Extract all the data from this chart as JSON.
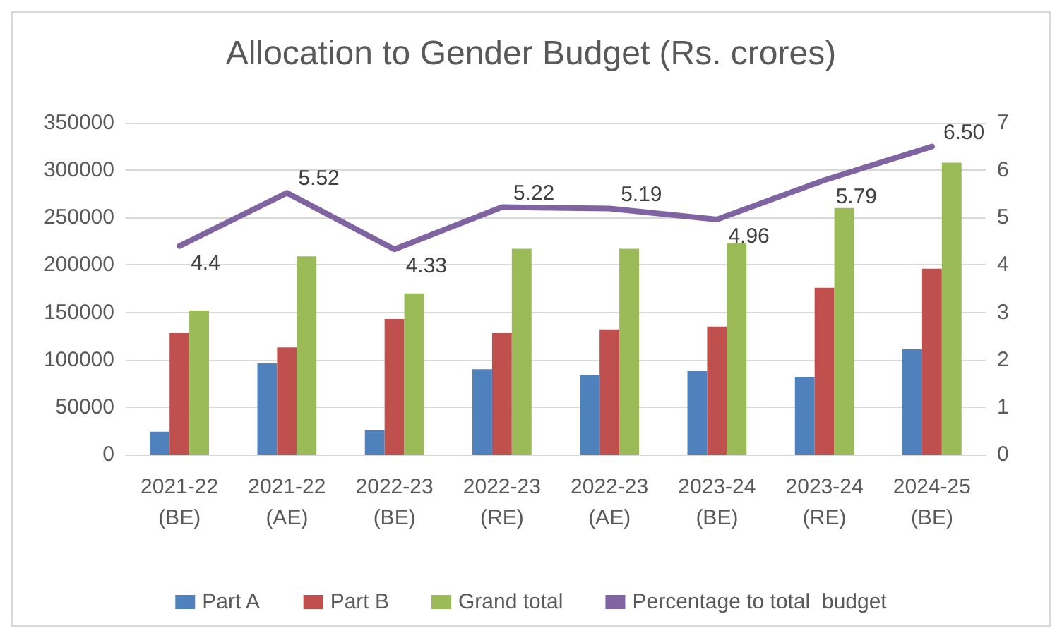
{
  "chart_data": {
    "type": "bar",
    "title": "Allocation to Gender Budget (Rs. crores)",
    "categories": [
      "2021-22\n(BE)",
      "2021-22\n(AE)",
      "2022-23\n(BE)",
      "2022-23\n(RE)",
      "2022-23\n(AE)",
      "2023-24\n(BE)",
      "2023-24\n(RE)",
      "2024-25\n(BE)"
    ],
    "series": [
      {
        "name": "Part A",
        "color": "#4f81bd",
        "values": [
          24000,
          96000,
          26000,
          90000,
          84000,
          88000,
          82000,
          111000
        ]
      },
      {
        "name": "Part B",
        "color": "#c0504d",
        "values": [
          128000,
          113000,
          143000,
          128000,
          132000,
          135000,
          176000,
          196000
        ]
      },
      {
        "name": "Grand total",
        "color": "#9bbb59",
        "values": [
          152000,
          209000,
          170000,
          217000,
          217000,
          223000,
          260000,
          308000
        ]
      },
      {
        "name": "Percentage to total  budget",
        "type": "line",
        "axis": "y2",
        "color": "#8064a2",
        "values": [
          4.4,
          5.52,
          4.33,
          5.22,
          5.19,
          4.96,
          5.79,
          6.5
        ],
        "value_labels": [
          "4.4",
          "5.52",
          "4.33",
          "5.22",
          "5.19",
          "4.96",
          "5.79",
          "6.50"
        ]
      }
    ],
    "ylim": [
      0,
      350000
    ],
    "yticks": [
      0,
      50000,
      100000,
      150000,
      200000,
      250000,
      300000,
      350000
    ],
    "y2lim": [
      0,
      7
    ],
    "y2ticks": [
      0,
      1,
      2,
      3,
      4,
      5,
      6,
      7
    ],
    "grid": "y",
    "legend": "bottom",
    "marker": "none"
  }
}
